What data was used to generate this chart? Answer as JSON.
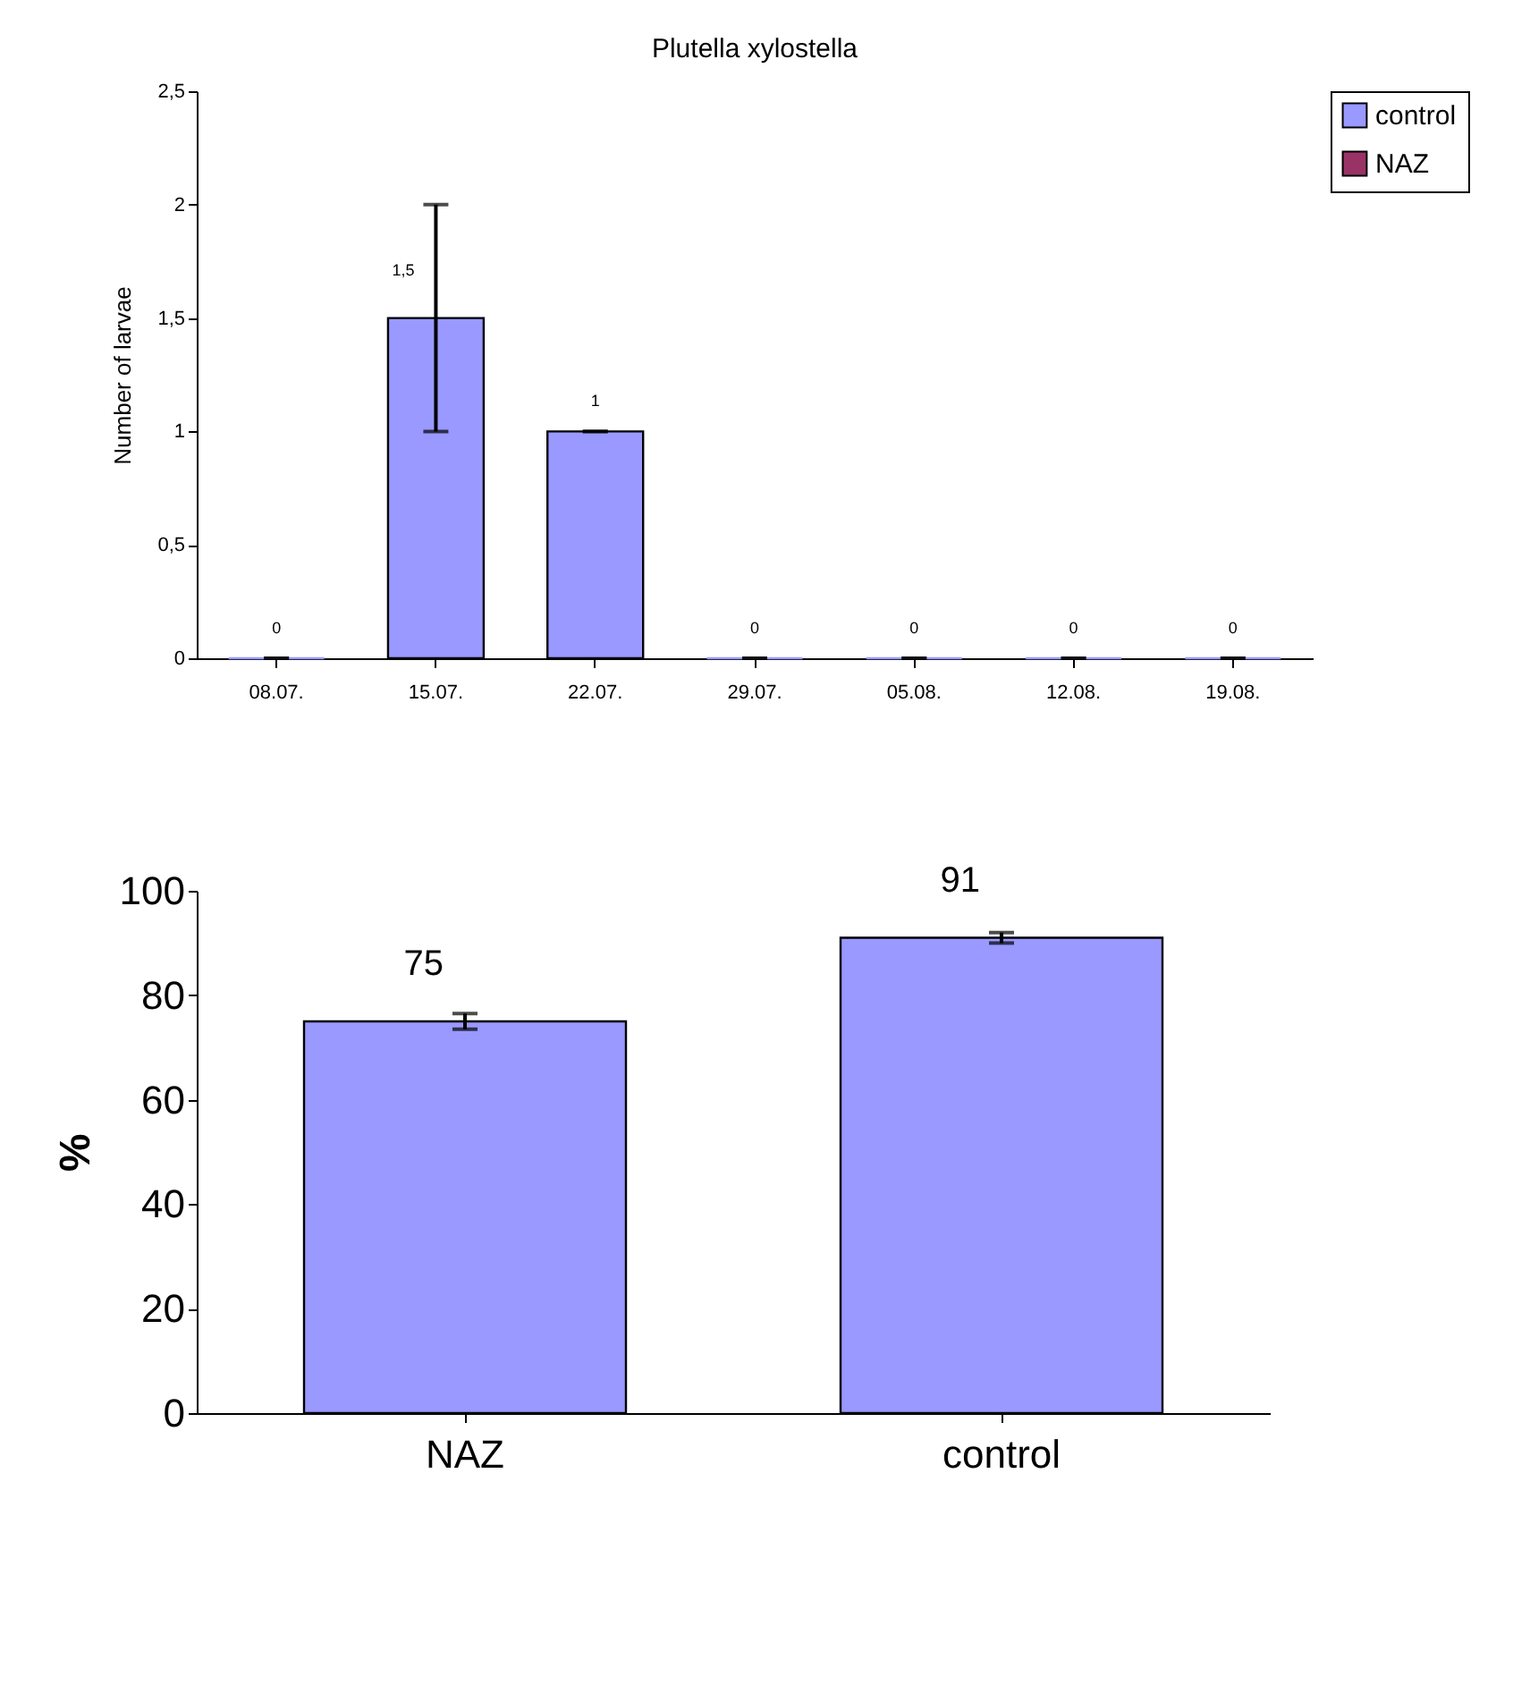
{
  "chart_data": [
    {
      "type": "bar",
      "title": "Plutella xylostella",
      "ylabel": "Number of larvae",
      "categories": [
        "08.07.",
        "15.07.",
        "22.07.",
        "29.07.",
        "05.08.",
        "12.08.",
        "19.08."
      ],
      "series": [
        {
          "name": "control",
          "color": "#9999ff",
          "values": [
            0,
            1.5,
            1,
            0,
            0,
            0,
            0
          ],
          "errors": [
            0,
            0.5,
            0,
            0,
            0,
            0,
            0
          ],
          "value_labels": [
            "0",
            "1,5",
            "1",
            "0",
            "0",
            "0",
            "0"
          ]
        },
        {
          "name": "NAZ",
          "color": "#993366",
          "values": [
            null,
            null,
            null,
            null,
            null,
            null,
            null
          ]
        }
      ],
      "ylim": [
        0,
        2.5
      ],
      "yticks": [
        0,
        {
          "value": 0.5,
          "label": "0,5"
        },
        1,
        {
          "value": 1.5,
          "label": "1,5"
        },
        2,
        {
          "value": 2.5,
          "label": "2,5"
        }
      ],
      "legend": "top right",
      "grid": false
    },
    {
      "type": "bar",
      "ylabel": "%",
      "categories": [
        "NAZ",
        "control"
      ],
      "values": [
        75,
        91
      ],
      "errors": [
        1.5,
        1
      ],
      "color": "#9999ff",
      "ylim": [
        0,
        100
      ],
      "yticks": [
        0,
        20,
        40,
        60,
        80,
        100
      ],
      "data_labels": true,
      "grid": false
    }
  ]
}
